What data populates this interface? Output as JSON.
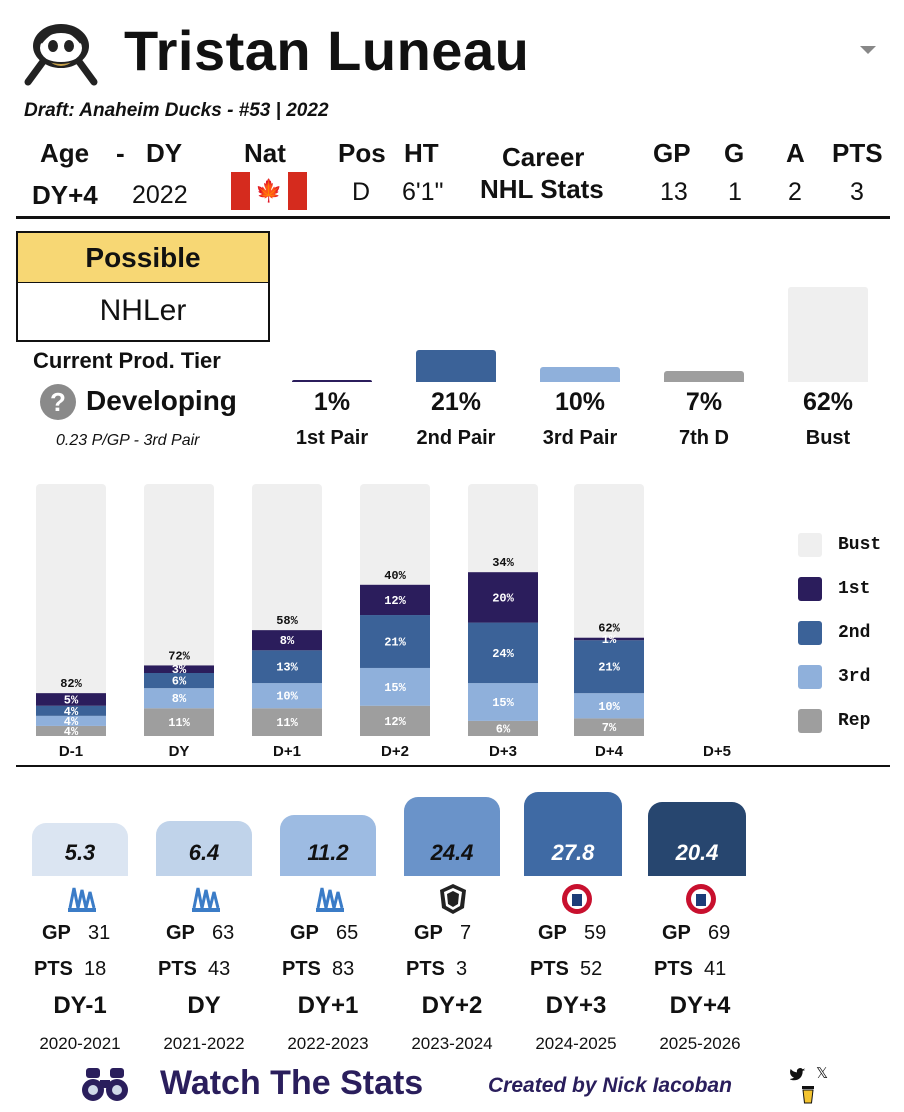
{
  "player": {
    "name": "Tristan Luneau",
    "draft": "Draft: Anaheim Ducks - #53 | 2022",
    "team_logo": "anaheim-ducks-logo"
  },
  "header": {
    "age_label": "Age",
    "dash": "-",
    "dy_label": "DY",
    "nat_label": "Nat",
    "pos_label": "Pos",
    "ht_label": "HT",
    "career_label1": "Career",
    "career_label2": "NHL Stats",
    "gp_label": "GP",
    "g_label": "G",
    "a_label": "A",
    "pts_label": "PTS",
    "age_val": "DY+4",
    "dy_val": "2022",
    "pos_val": "D",
    "ht_val": "6'1\"",
    "gp_val": "13",
    "g_val": "1",
    "a_val": "2",
    "pts_val": "3",
    "nationality_icon": "canada-flag-icon"
  },
  "projection": {
    "top": "Possible",
    "bottom": "NHLer",
    "tier_label": "Current Prod. Tier",
    "tier_value": "Developing",
    "tier_sub": "0.23 P/GP - 3rd Pair"
  },
  "tiers": [
    {
      "pct": "1%",
      "label": "1st Pair",
      "value": 1,
      "color": "#2b1d5c"
    },
    {
      "pct": "21%",
      "label": "2nd Pair",
      "value": 21,
      "color": "#3b6298"
    },
    {
      "pct": "10%",
      "label": "3rd Pair",
      "value": 10,
      "color": "#8fb0db"
    },
    {
      "pct": "7%",
      "label": "7th D",
      "value": 7,
      "color": "#9e9e9e"
    },
    {
      "pct": "62%",
      "label": "Bust",
      "value": 62,
      "color": "#efefef"
    }
  ],
  "chart_data": {
    "type": "bar",
    "title": "",
    "categories": [
      "D-1",
      "DY",
      "D+1",
      "D+2",
      "D+3",
      "D+4",
      "D+5"
    ],
    "series": [
      {
        "name": "Rep",
        "color": "#9e9e9e",
        "values": [
          4,
          11,
          11,
          12,
          6,
          7,
          null
        ]
      },
      {
        "name": "3rd",
        "color": "#8fb0db",
        "values": [
          4,
          8,
          10,
          15,
          15,
          10,
          null
        ]
      },
      {
        "name": "2nd",
        "color": "#3b6298",
        "values": [
          4,
          6,
          13,
          21,
          24,
          21,
          null
        ]
      },
      {
        "name": "1st",
        "color": "#2b1d5c",
        "values": [
          5,
          3,
          8,
          12,
          20,
          1,
          null
        ]
      },
      {
        "name": "Bust",
        "color": "#efefef",
        "values": [
          82,
          72,
          58,
          40,
          34,
          62,
          null
        ]
      }
    ],
    "ylim": [
      0,
      100
    ],
    "legend": [
      "Bust",
      "1st",
      "2nd",
      "3rd",
      "Rep"
    ],
    "legend_position": "right"
  },
  "seasons": [
    {
      "value": "5.3",
      "value_num": 5.3,
      "league_icon": "qmjhl-logo-icon",
      "gp_label": "GP",
      "gp": "31",
      "pts_label": "PTS",
      "pts": "18",
      "dy": "DY-1",
      "year": "2020-2021",
      "color": "#dbe5f2",
      "text": "#111"
    },
    {
      "value": "6.4",
      "value_num": 6.4,
      "league_icon": "qmjhl-logo-icon",
      "gp_label": "GP",
      "gp": "63",
      "pts_label": "PTS",
      "pts": "43",
      "dy": "DY",
      "year": "2021-2022",
      "color": "#c0d3ea",
      "text": "#111"
    },
    {
      "value": "11.2",
      "value_num": 11.2,
      "league_icon": "qmjhl-logo-icon",
      "gp_label": "GP",
      "gp": "65",
      "pts_label": "PTS",
      "pts": "83",
      "dy": "DY+1",
      "year": "2022-2023",
      "color": "#9dbbe2",
      "text": "#111"
    },
    {
      "value": "24.4",
      "value_num": 24.4,
      "league_icon": "nhl-logo-icon",
      "gp_label": "GP",
      "gp": "7",
      "pts_label": "PTS",
      "pts": "3",
      "dy": "DY+2",
      "year": "2023-2024",
      "color": "#6a93c9",
      "text": "#111"
    },
    {
      "value": "27.8",
      "value_num": 27.8,
      "league_icon": "ahl-logo-icon",
      "gp_label": "GP",
      "gp": "59",
      "pts_label": "PTS",
      "pts": "52",
      "dy": "DY+3",
      "year": "2024-2025",
      "color": "#3f6aa4",
      "text": "#ffffff"
    },
    {
      "value": "20.4",
      "value_num": 20.4,
      "league_icon": "ahl-logo-icon",
      "gp_label": "GP",
      "gp": "69",
      "pts_label": "PTS",
      "pts": "41",
      "dy": "DY+4",
      "year": "2025-2026",
      "color": "#27466f",
      "text": "#ffffff"
    }
  ],
  "footer": {
    "brand": "Watch The Stats",
    "created_by": "Created by Nick Iacoban",
    "twitter_icon": "twitter-icon",
    "x_icon": "x-icon",
    "coffee_icon": "coffee-icon",
    "binoculars_icon": "binoculars-icon"
  }
}
